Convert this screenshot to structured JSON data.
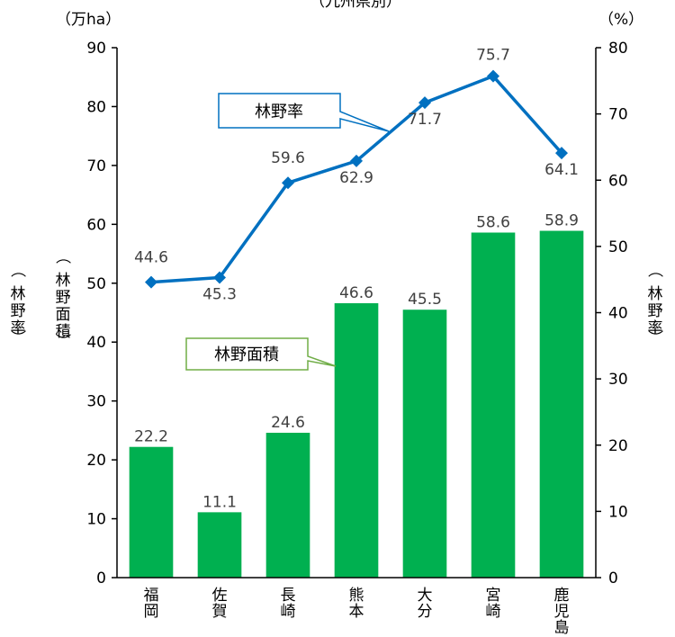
{
  "chart_data": {
    "type": "bar",
    "title": "（九州県別）",
    "categories": [
      "福岡",
      "佐賀",
      "長崎",
      "熊本",
      "大分",
      "宮崎",
      "鹿児島"
    ],
    "series": [
      {
        "name": "林野面積",
        "type": "bar",
        "axis": "left",
        "color": "#00b050",
        "values": [
          22.2,
          11.1,
          24.6,
          46.6,
          45.5,
          58.6,
          58.9
        ]
      },
      {
        "name": "林野率",
        "type": "line",
        "axis": "right",
        "color": "#0070c0",
        "values": [
          44.6,
          45.3,
          59.6,
          62.9,
          71.7,
          75.7,
          64.1
        ]
      }
    ],
    "ylabel_left": "（林野面積）",
    "ylabel_right": "（林野率）",
    "unit_left": "（万ha）",
    "unit_right": "（%）",
    "ylim_left": [
      0,
      90
    ],
    "ylim_right": [
      0,
      80
    ],
    "yticks_left": [
      0,
      10,
      20,
      30,
      40,
      50,
      60,
      70,
      80,
      90
    ],
    "yticks_right": [
      0,
      10,
      20,
      30,
      40,
      50,
      60,
      70,
      80
    ],
    "grid": false,
    "legend": "callouts"
  }
}
